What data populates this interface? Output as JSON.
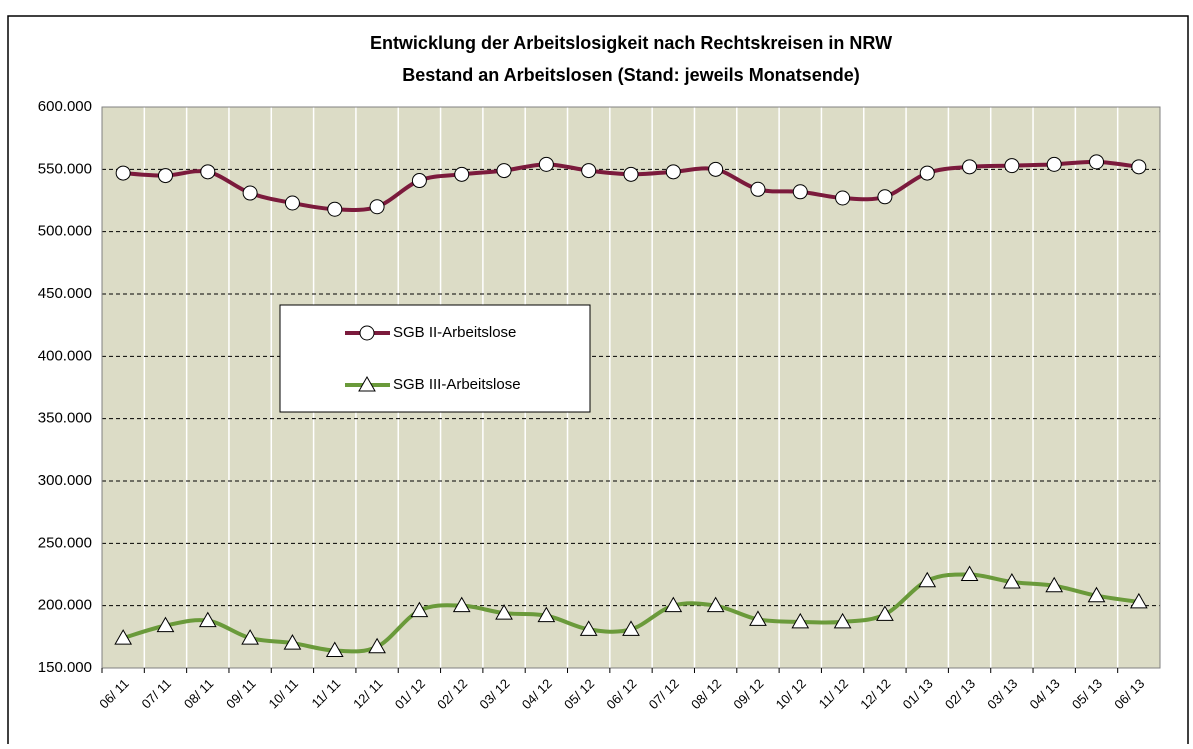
{
  "chart_data": {
    "type": "line",
    "title": "Entwicklung der Arbeitslosigkeit nach Rechtskreisen in NRW",
    "subtitle": "Bestand an Arbeitslosen (Stand: jeweils Monatsende)",
    "categories": [
      "06/ 11",
      "07/ 11",
      "08/ 11",
      "09/ 11",
      "10/ 11",
      "11/ 11",
      "12/ 11",
      "01/ 12",
      "02/ 12",
      "03/ 12",
      "04/ 12",
      "05/ 12",
      "06/ 12",
      "07/ 12",
      "08/ 12",
      "09/ 12",
      "10/ 12",
      "11/ 12",
      "12/ 12",
      "01/ 13",
      "02/ 13",
      "03/ 13",
      "04/ 13",
      "05/ 13",
      "06/ 13"
    ],
    "series": [
      {
        "name": "SGB II-Arbeitslose",
        "color": "#7b1a3c",
        "marker": "circle",
        "values": [
          547000,
          545000,
          548000,
          531000,
          523000,
          518000,
          520000,
          541000,
          546000,
          549000,
          554000,
          549000,
          546000,
          548000,
          550000,
          534000,
          532000,
          527000,
          528000,
          547000,
          552000,
          553000,
          554000,
          556000,
          552000
        ]
      },
      {
        "name": "SGB III-Arbeitslose",
        "color": "#6a9a3a",
        "marker": "triangle",
        "values": [
          174000,
          184000,
          188000,
          174000,
          170000,
          164000,
          167000,
          196000,
          200000,
          194000,
          192000,
          181000,
          181000,
          200000,
          200000,
          189000,
          187000,
          187000,
          193000,
          220000,
          225000,
          219000,
          216000,
          208000,
          203000
        ]
      }
    ],
    "ylim": [
      150000,
      600000
    ],
    "yticks": [
      {
        "value": 150000,
        "label": "150.000"
      },
      {
        "value": 200000,
        "label": "200.000"
      },
      {
        "value": 250000,
        "label": "250.000"
      },
      {
        "value": 300000,
        "label": "300.000"
      },
      {
        "value": 350000,
        "label": "350.000"
      },
      {
        "value": 400000,
        "label": "400.000"
      },
      {
        "value": 450000,
        "label": "450.000"
      },
      {
        "value": 500000,
        "label": "500.000"
      },
      {
        "value": 550000,
        "label": "550.000"
      },
      {
        "value": 600000,
        "label": "600.000"
      }
    ],
    "grid": true
  }
}
